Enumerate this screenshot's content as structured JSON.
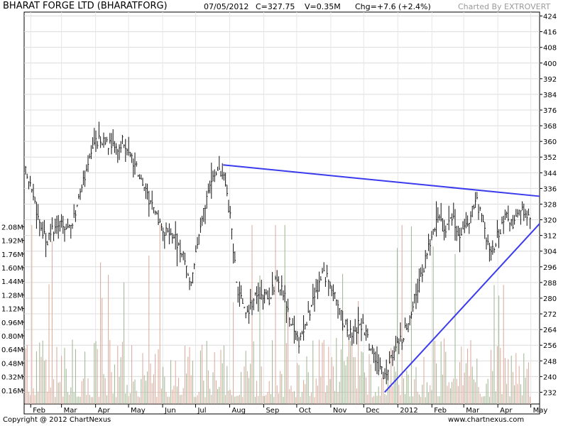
{
  "header": {
    "title": "BHARAT FORGE LTD (BHARATFORG)",
    "date": "07/05/2012",
    "close": "C=327.75",
    "volume": "V=0.35M",
    "change": "Chg=+7.6 (+2.4%)",
    "charted_by": "Charted By EXTROVERT"
  },
  "footer": {
    "copyright": "Copyright @ 2012 ChartNexus",
    "url": "www.chartnexus.com"
  },
  "chart_data": {
    "type": "line",
    "price_axis": {
      "ticks": [
        232,
        240,
        248,
        256,
        264,
        272,
        280,
        288,
        296,
        304,
        312,
        320,
        328,
        336,
        344,
        352,
        360,
        368,
        376,
        384,
        392,
        400,
        408,
        416,
        424
      ],
      "ylim": [
        226,
        426
      ]
    },
    "volume_axis": {
      "tick_labels": [
        "0.16M",
        "0.32M",
        "0.48M",
        "0.64M",
        "0.80M",
        "0.96M",
        "1.12M",
        "1.28M",
        "1.44M",
        "1.60M",
        "1.76M",
        "1.92M",
        "2.08M"
      ],
      "ylim": [
        0,
        2.2
      ]
    },
    "x_tick_labels": [
      "Feb",
      "Mar",
      "Apr",
      "May",
      "Jun",
      "Jul",
      "Aug",
      "Sep",
      "Oct",
      "Nov",
      "Dec",
      "2012",
      "Feb",
      "Mar",
      "Apr",
      "May"
    ],
    "price_series": [
      {
        "date": "2011-01-27",
        "value": 345
      },
      {
        "date": "2011-02-03",
        "value": 332
      },
      {
        "date": "2011-02-09",
        "value": 318
      },
      {
        "date": "2011-02-16",
        "value": 310
      },
      {
        "date": "2011-02-22",
        "value": 316
      },
      {
        "date": "2011-03-01",
        "value": 318
      },
      {
        "date": "2011-03-07",
        "value": 316
      },
      {
        "date": "2011-03-14",
        "value": 323
      },
      {
        "date": "2011-03-21",
        "value": 340
      },
      {
        "date": "2011-03-28",
        "value": 356
      },
      {
        "date": "2011-04-04",
        "value": 362
      },
      {
        "date": "2011-04-11",
        "value": 359
      },
      {
        "date": "2011-04-18",
        "value": 356
      },
      {
        "date": "2011-04-25",
        "value": 360
      },
      {
        "date": "2011-05-02",
        "value": 352
      },
      {
        "date": "2011-05-09",
        "value": 345
      },
      {
        "date": "2011-05-16",
        "value": 336
      },
      {
        "date": "2011-05-23",
        "value": 326
      },
      {
        "date": "2011-05-30",
        "value": 318
      },
      {
        "date": "2011-06-06",
        "value": 312
      },
      {
        "date": "2011-06-13",
        "value": 310
      },
      {
        "date": "2011-06-20",
        "value": 300
      },
      {
        "date": "2011-06-27",
        "value": 288
      },
      {
        "date": "2011-07-04",
        "value": 310
      },
      {
        "date": "2011-07-11",
        "value": 332
      },
      {
        "date": "2011-07-18",
        "value": 341
      },
      {
        "date": "2011-07-25",
        "value": 346
      },
      {
        "date": "2011-08-01",
        "value": 324
      },
      {
        "date": "2011-08-08",
        "value": 285
      },
      {
        "date": "2011-08-15",
        "value": 272
      },
      {
        "date": "2011-08-22",
        "value": 278
      },
      {
        "date": "2011-08-29",
        "value": 283
      },
      {
        "date": "2011-09-05",
        "value": 279
      },
      {
        "date": "2011-09-12",
        "value": 288
      },
      {
        "date": "2011-09-19",
        "value": 282
      },
      {
        "date": "2011-09-26",
        "value": 268
      },
      {
        "date": "2011-10-03",
        "value": 258
      },
      {
        "date": "2011-10-10",
        "value": 268
      },
      {
        "date": "2011-10-17",
        "value": 280
      },
      {
        "date": "2011-10-24",
        "value": 294
      },
      {
        "date": "2011-10-31",
        "value": 288
      },
      {
        "date": "2011-11-07",
        "value": 276
      },
      {
        "date": "2011-11-14",
        "value": 266
      },
      {
        "date": "2011-11-21",
        "value": 262
      },
      {
        "date": "2011-11-28",
        "value": 268
      },
      {
        "date": "2011-12-05",
        "value": 258
      },
      {
        "date": "2011-12-12",
        "value": 248
      },
      {
        "date": "2011-12-19",
        "value": 240
      },
      {
        "date": "2011-12-26",
        "value": 250
      },
      {
        "date": "2012-01-02",
        "value": 256
      },
      {
        "date": "2012-01-09",
        "value": 265
      },
      {
        "date": "2012-01-16",
        "value": 280
      },
      {
        "date": "2012-01-23",
        "value": 292
      },
      {
        "date": "2012-01-30",
        "value": 308
      },
      {
        "date": "2012-02-06",
        "value": 320
      },
      {
        "date": "2012-02-13",
        "value": 314
      },
      {
        "date": "2012-02-20",
        "value": 322
      },
      {
        "date": "2012-02-27",
        "value": 310
      },
      {
        "date": "2012-03-05",
        "value": 318
      },
      {
        "date": "2012-03-12",
        "value": 330
      },
      {
        "date": "2012-03-19",
        "value": 318
      },
      {
        "date": "2012-03-26",
        "value": 302
      },
      {
        "date": "2012-04-02",
        "value": 314
      },
      {
        "date": "2012-04-09",
        "value": 322
      },
      {
        "date": "2012-04-16",
        "value": 318
      },
      {
        "date": "2012-04-23",
        "value": 326
      },
      {
        "date": "2012-04-30",
        "value": 320
      },
      {
        "date": "2012-05-07",
        "value": 327.75
      }
    ],
    "trendlines": [
      {
        "start": {
          "date": "2011-07-26",
          "value": 348
        },
        "end": {
          "date": "2012-05-09",
          "value": 332
        }
      },
      {
        "start": {
          "date": "2011-12-20",
          "value": 232
        },
        "end": {
          "date": "2012-05-09",
          "value": 318
        }
      }
    ],
    "grid": true
  }
}
